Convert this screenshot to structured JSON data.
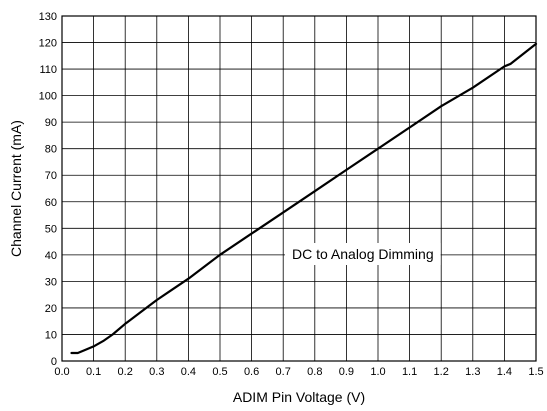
{
  "chart_data": {
    "type": "line",
    "title": "",
    "xlabel": "ADIM Pin Voltage (V)",
    "ylabel": "Channel Current (mA)",
    "xlim": [
      0,
      1.5
    ],
    "ylim": [
      0,
      130
    ],
    "xticks": [
      "0.0",
      "0.1",
      "0.2",
      "0.3",
      "0.4",
      "0.5",
      "0.6",
      "0.7",
      "0.8",
      "0.9",
      "1.0",
      "1.1",
      "1.2",
      "1.3",
      "1.4",
      "1.5"
    ],
    "yticks": [
      "0",
      "10",
      "20",
      "30",
      "40",
      "50",
      "60",
      "70",
      "80",
      "90",
      "100",
      "110",
      "120",
      "130"
    ],
    "grid": true,
    "annotation": "DC to Analog Dimming",
    "series": [
      {
        "x": [
          0.03,
          0.05,
          0.07,
          0.1,
          0.13,
          0.16,
          0.2,
          0.25,
          0.3,
          0.35,
          0.4,
          0.45,
          0.5,
          0.6,
          0.7,
          0.8,
          0.9,
          1.0,
          1.1,
          1.2,
          1.3,
          1.4,
          1.42,
          1.5
        ],
        "y": [
          3,
          3,
          4,
          5.5,
          7.5,
          10,
          14,
          18.5,
          23,
          27,
          31,
          35.5,
          40,
          48,
          56,
          64,
          72,
          80,
          88,
          96,
          103,
          111,
          112,
          119.5
        ]
      }
    ]
  }
}
